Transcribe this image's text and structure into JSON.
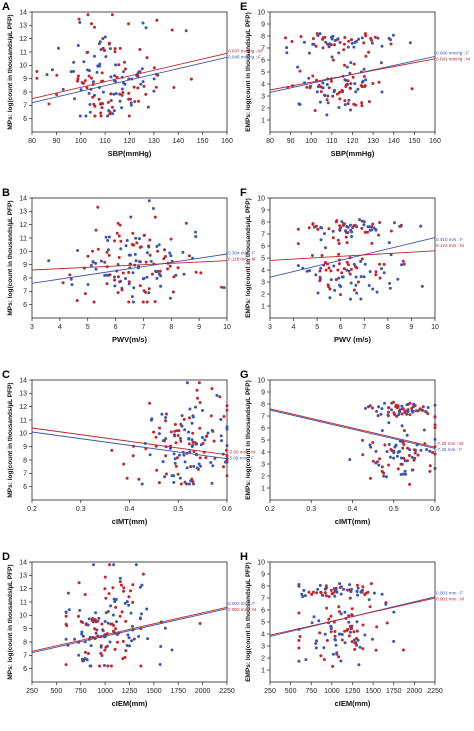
{
  "palette": {
    "M": "#c0262d",
    "F": "#3a56b0",
    "frame": "#222222"
  },
  "chart_data": [
    {
      "type": "scatter",
      "panel": "A",
      "xlabel": "SBP(mmHg)",
      "ylabel": "MPs: log(count in thousands/µL PFP)",
      "xlim": [
        80,
        160
      ],
      "ylim": [
        5,
        14
      ],
      "xticks": [
        "80",
        "90",
        "100",
        "110",
        "120",
        "130",
        "140",
        "150",
        "160"
      ],
      "yticks": [
        "6",
        "7",
        "8",
        "9",
        "10",
        "11",
        "12",
        "13",
        "14"
      ],
      "fit": {
        "M": [
          7.5,
          10.9
        ],
        "F": [
          7.2,
          10.6
        ]
      },
      "annotations": [
        {
          "text": "0.047 mmHg : M",
          "series": "M"
        },
        {
          "text": "0.046 mmHg : F",
          "series": "F"
        }
      ],
      "cloud": {
        "xc": 112,
        "xs": 12,
        "yc": 8.6,
        "ys": 1.4,
        "xmin": 82,
        "xmax": 158,
        "ymin": 6.2,
        "ymax": 13.8
      }
    },
    {
      "type": "scatter",
      "panel": "B",
      "xlabel": "PWV(m/s)",
      "ylabel": "MPs: log(count in thousands/µL PFP)",
      "xlim": [
        3,
        10
      ],
      "ylim": [
        5,
        14
      ],
      "xticks": [
        "3",
        "4",
        "5",
        "6",
        "7",
        "8",
        "9",
        "10"
      ],
      "yticks": [
        "6",
        "7",
        "8",
        "9",
        "10",
        "11",
        "12",
        "13",
        "14"
      ],
      "fit": {
        "M": [
          8.6,
          9.3
        ],
        "F": [
          7.6,
          9.8
        ]
      },
      "annotations": [
        {
          "text": "0.304 m/s : F",
          "series": "F"
        },
        {
          "text": "0.118 m/s : M",
          "series": "M"
        }
      ],
      "cloud": {
        "xc": 6.6,
        "xs": 1.2,
        "yc": 8.7,
        "ys": 1.4,
        "xmin": 3.6,
        "xmax": 9.9,
        "ymin": 6.2,
        "ymax": 13.8
      }
    },
    {
      "type": "scatter",
      "panel": "C",
      "xlabel": "cIMT(mm)",
      "ylabel": "MPs: log(count in thousands/µL PFP)",
      "xlim": [
        0.2,
        0.6
      ],
      "ylim": [
        5,
        14
      ],
      "xticks": [
        "0.2",
        "0.3",
        "0.4",
        "0.5",
        "0.6"
      ],
      "yticks": [
        "6",
        "7",
        "8",
        "9",
        "10",
        "11",
        "12",
        "13",
        "14"
      ],
      "fit": {
        "M": [
          10.4,
          8.4
        ],
        "F": [
          10.1,
          8.1
        ]
      },
      "annotations": [
        {
          "text": "-3.60 mm : M",
          "series": "M"
        },
        {
          "text": "-5.09 mm : F",
          "series": "F"
        }
      ],
      "cloud": {
        "xc": 0.52,
        "xs": 0.05,
        "yc": 8.6,
        "ys": 1.5,
        "xmin": 0.21,
        "xmax": 0.6,
        "ymin": 6.2,
        "ymax": 13.8
      }
    },
    {
      "type": "scatter",
      "panel": "D",
      "xlabel": "cIEM(mm)",
      "ylabel": "MPs: log(count in thousands/µL PFP)",
      "xlim": [
        250,
        2250
      ],
      "ylim": [
        5,
        14
      ],
      "xticks": [
        "250",
        "500",
        "750",
        "1000",
        "1250",
        "1500",
        "1750",
        "2000",
        "2250"
      ],
      "yticks": [
        "6",
        "7",
        "8",
        "9",
        "10",
        "11",
        "12",
        "13",
        "14"
      ],
      "fit": {
        "M": [
          7.3,
          10.6
        ],
        "F": [
          7.2,
          10.5
        ]
      },
      "annotations": [
        {
          "text": "0.002 mm : F",
          "series": "F"
        },
        {
          "text": "0.002 mm : M",
          "series": "M"
        }
      ],
      "cloud": {
        "xc": 1050,
        "xs": 280,
        "yc": 8.8,
        "ys": 1.5,
        "xmin": 600,
        "xmax": 2200,
        "ymin": 6.2,
        "ymax": 13.8
      }
    },
    {
      "type": "scatter",
      "panel": "E",
      "xlabel": "SBP(mmHg)",
      "ylabel": "EMPs: log(count in thousands/µL PFP)",
      "xlim": [
        80,
        160
      ],
      "ylim": [
        0,
        10
      ],
      "xticks": [
        "80",
        "90",
        "100",
        "110",
        "120",
        "130",
        "140",
        "150",
        "160"
      ],
      "yticks": [
        "1",
        "2",
        "3",
        "4",
        "5",
        "6",
        "7",
        "8",
        "9",
        "10"
      ],
      "fit": {
        "M": [
          3.5,
          6.1
        ],
        "F": [
          3.3,
          6.3
        ]
      },
      "annotations": [
        {
          "text": "0.046 mmHg : F",
          "series": "F"
        },
        {
          "text": "0.041 mmHg : M",
          "series": "M"
        }
      ],
      "cloud": {
        "bimodal": true,
        "xc": 112,
        "xs": 12,
        "xmin": 85,
        "xmax": 150,
        "ymin": 1.3,
        "ymax": 8.2
      }
    },
    {
      "type": "scatter",
      "panel": "F",
      "xlabel": "PWV (m/s)",
      "ylabel": "EMPs: log(count in thousands/µL PFP)",
      "xlim": [
        3,
        10
      ],
      "ylim": [
        0,
        10
      ],
      "xticks": [
        "3",
        "4",
        "5",
        "6",
        "7",
        "8",
        "9",
        "10"
      ],
      "yticks": [
        "1",
        "2",
        "3",
        "4",
        "5",
        "6",
        "7",
        "8",
        "9",
        "10"
      ],
      "fit": {
        "M": [
          4.8,
          5.6
        ],
        "F": [
          3.4,
          6.7
        ]
      },
      "annotations": [
        {
          "text": "0.410 m/s : F",
          "series": "F"
        },
        {
          "text": "0.122 m/s : M",
          "series": "M"
        }
      ],
      "cloud": {
        "bimodal": true,
        "xc": 6.4,
        "xs": 1.1,
        "xmin": 4.2,
        "xmax": 9.8,
        "ymin": 1.3,
        "ymax": 8.2
      }
    },
    {
      "type": "scatter",
      "panel": "G",
      "xlabel": "cIMT(mm)",
      "ylabel": "EMPs: log(count in thousands/µL PFP)",
      "xlim": [
        0.2,
        0.6
      ],
      "ylim": [
        0,
        10
      ],
      "xticks": [
        "0.2",
        "0.3",
        "0.4",
        "0.5",
        "0.6"
      ],
      "yticks": [
        "1",
        "2",
        "3",
        "4",
        "5",
        "6",
        "7",
        "8",
        "9",
        "10"
      ],
      "fit": {
        "M": [
          7.6,
          4.4
        ],
        "F": [
          7.5,
          4.3
        ]
      },
      "annotations": [
        {
          "text": "-7.20 mm : M",
          "series": "M"
        },
        {
          "text": "-7.25 mm : F",
          "series": "F"
        }
      ],
      "cloud": {
        "bimodal": true,
        "xc": 0.52,
        "xs": 0.05,
        "xmin": 0.22,
        "xmax": 0.6,
        "ymin": 1.3,
        "ymax": 8.2
      }
    },
    {
      "type": "scatter",
      "panel": "H",
      "xlabel": "cIEM(mm)",
      "ylabel": "EMPs: log(count in thousands/µL PFP)",
      "xlim": [
        250,
        2250
      ],
      "ylim": [
        0,
        10
      ],
      "xticks": [
        "250",
        "500",
        "750",
        "1000",
        "1250",
        "1500",
        "1750",
        "2000",
        "2250"
      ],
      "yticks": [
        "1",
        "2",
        "3",
        "4",
        "5",
        "6",
        "7",
        "8",
        "9",
        "10"
      ],
      "fit": {
        "M": [
          3.9,
          7.0
        ],
        "F": [
          3.8,
          7.1
        ]
      },
      "annotations": [
        {
          "text": "0.001 mm : F",
          "series": "F"
        },
        {
          "text": "0.001 mm : M",
          "series": "M"
        }
      ],
      "cloud": {
        "bimodal": true,
        "xc": 1050,
        "xs": 280,
        "xmin": 600,
        "xmax": 2200,
        "ymin": 1.3,
        "ymax": 8.2
      }
    }
  ]
}
